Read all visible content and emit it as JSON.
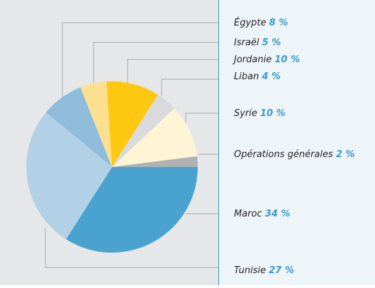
{
  "chart_data": {
    "type": "pie",
    "categories": [
      "Égypte",
      "Israël",
      "Jordanie",
      "Liban",
      "Syrie",
      "Opérations générales",
      "Maroc",
      "Tunisie"
    ],
    "values": [
      8,
      5,
      10,
      4,
      10,
      2,
      34,
      27
    ],
    "value_labels": [
      "8 %",
      "5 %",
      "10 %",
      "4 %",
      "10 %",
      "2 %",
      "34 %",
      "27 %"
    ],
    "colors": [
      "#8fbcdb",
      "#fde08f",
      "#fdc80f",
      "#d9dadb",
      "#fdf5d6",
      "#b0b1b3",
      "#4aa3cf",
      "#b3d1e6"
    ]
  }
}
